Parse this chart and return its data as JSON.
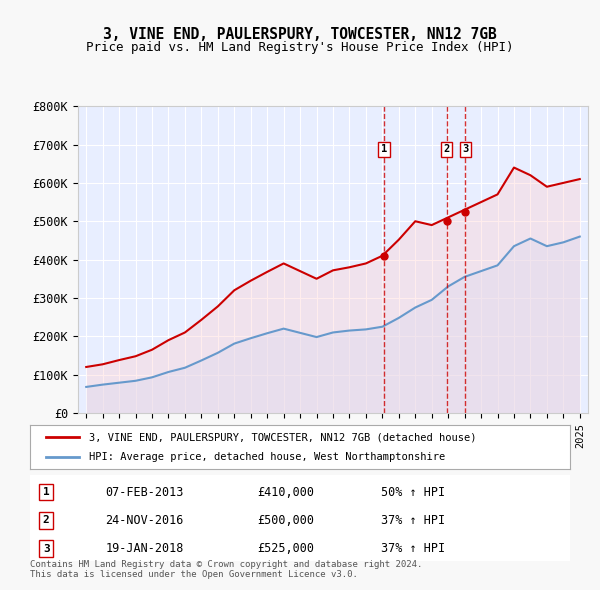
{
  "title": "3, VINE END, PAULERSPURY, TOWCESTER, NN12 7GB",
  "subtitle": "Price paid vs. HM Land Registry's House Price Index (HPI)",
  "background_color": "#f0f4ff",
  "plot_bg_color": "#e8eeff",
  "legend_line1": "3, VINE END, PAULERSPURY, TOWCESTER, NN12 7GB (detached house)",
  "legend_line2": "HPI: Average price, detached house, West Northamptonshire",
  "footer": "Contains HM Land Registry data © Crown copyright and database right 2024.\nThis data is licensed under the Open Government Licence v3.0.",
  "transactions": [
    {
      "num": 1,
      "date": "07-FEB-2013",
      "price": 410000,
      "year": 2013.1,
      "pct": "50% ↑ HPI"
    },
    {
      "num": 2,
      "date": "24-NOV-2016",
      "price": 500000,
      "year": 2016.9,
      "pct": "37% ↑ HPI"
    },
    {
      "num": 3,
      "date": "19-JAN-2018",
      "price": 525000,
      "year": 2018.05,
      "pct": "37% ↑ HPI"
    }
  ],
  "hpi_years": [
    1995,
    1996,
    1997,
    1998,
    1999,
    2000,
    2001,
    2002,
    2003,
    2004,
    2005,
    2006,
    2007,
    2008,
    2009,
    2010,
    2011,
    2012,
    2013,
    2014,
    2015,
    2016,
    2017,
    2018,
    2019,
    2020,
    2021,
    2022,
    2023,
    2024,
    2025
  ],
  "hpi_values": [
    68000,
    74000,
    79000,
    84000,
    93000,
    107000,
    118000,
    137000,
    157000,
    181000,
    195000,
    208000,
    220000,
    209000,
    198000,
    210000,
    215000,
    218000,
    225000,
    248000,
    275000,
    295000,
    330000,
    355000,
    370000,
    385000,
    435000,
    455000,
    435000,
    445000,
    460000
  ],
  "property_years": [
    1995,
    1996,
    1997,
    1998,
    1999,
    2000,
    2001,
    2002,
    2003,
    2004,
    2005,
    2006,
    2007,
    2008,
    2009,
    2010,
    2011,
    2012,
    2013,
    2014,
    2015,
    2016,
    2017,
    2018,
    2019,
    2020,
    2021,
    2022,
    2023,
    2024,
    2025
  ],
  "property_values": [
    120000,
    127000,
    138000,
    148000,
    165000,
    190000,
    210000,
    243000,
    278000,
    320000,
    345000,
    368000,
    390000,
    370000,
    350000,
    372000,
    380000,
    390000,
    410000,
    452000,
    500000,
    490000,
    510000,
    530000,
    550000,
    570000,
    640000,
    620000,
    590000,
    600000,
    610000
  ],
  "ylim": [
    0,
    800000
  ],
  "yticks": [
    0,
    100000,
    200000,
    300000,
    400000,
    500000,
    600000,
    700000,
    800000
  ],
  "ytick_labels": [
    "£0",
    "£100K",
    "£200K",
    "£300K",
    "£400K",
    "£500K",
    "£600K",
    "£700K",
    "£800K"
  ],
  "xticks": [
    1995,
    1996,
    1997,
    1998,
    1999,
    2000,
    2001,
    2002,
    2003,
    2004,
    2005,
    2006,
    2007,
    2008,
    2009,
    2010,
    2011,
    2012,
    2013,
    2014,
    2015,
    2016,
    2017,
    2018,
    2019,
    2020,
    2021,
    2022,
    2023,
    2024,
    2025
  ],
  "red_line_color": "#cc0000",
  "blue_line_color": "#6699cc",
  "red_fill_color": "#ffcccc",
  "blue_fill_color": "#cce0ff",
  "vline_color": "#cc0000",
  "marker_color": "#cc0000"
}
